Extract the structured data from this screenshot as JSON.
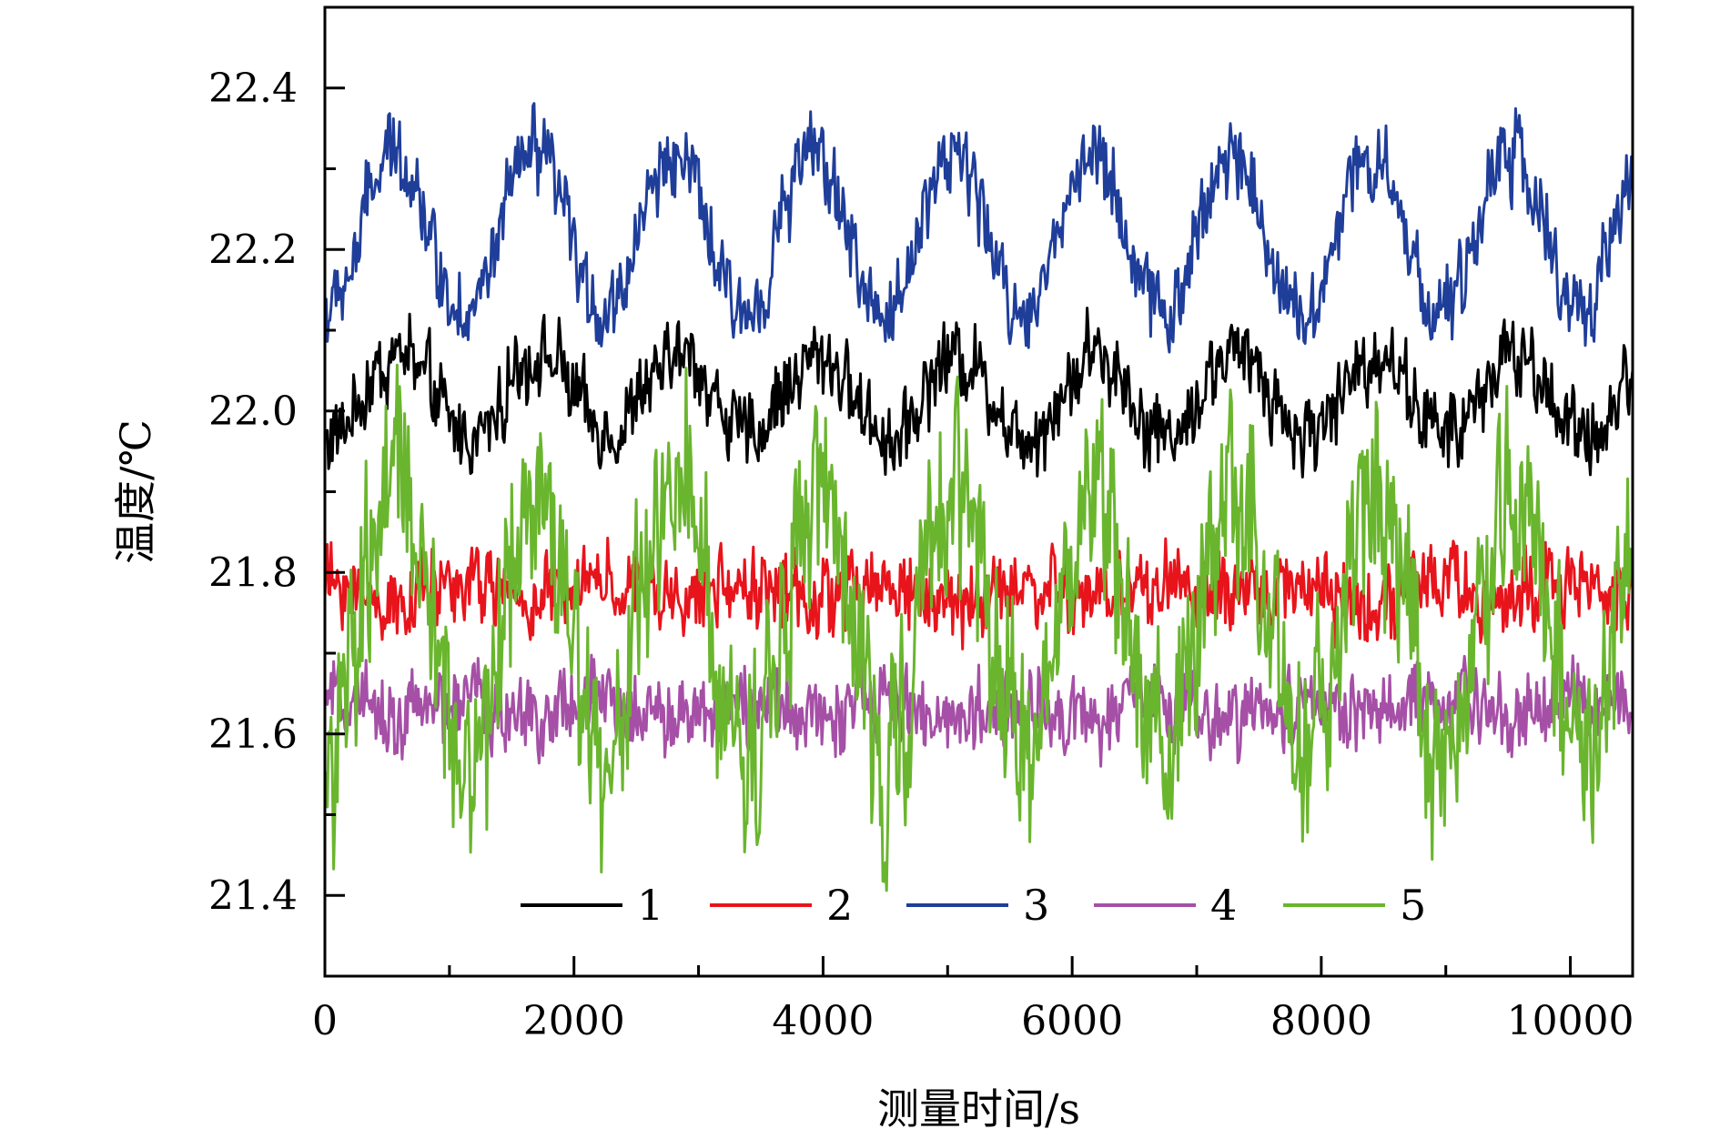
{
  "chart_data": {
    "type": "line",
    "title": "",
    "xlabel": "测量时间/s",
    "ylabel": "温度/℃",
    "xlim": [
      0,
      10500
    ],
    "ylim": [
      21.3,
      22.5
    ],
    "xticks": [
      0,
      2000,
      4000,
      6000,
      8000,
      10000
    ],
    "xtick_labels": [
      "0",
      "2000",
      "4000",
      "6000",
      "8000",
      "10000"
    ],
    "yticks": [
      21.4,
      21.6,
      21.8,
      22.0,
      22.2,
      22.4
    ],
    "ytick_labels": [
      "21.4",
      "21.6",
      "21.8",
      "22.0",
      "22.2",
      "22.4"
    ],
    "grid": false,
    "legend_position": "bottom, horizontal",
    "period_s": 1120,
    "sample_step_s": 10,
    "series": [
      {
        "name": "1",
        "color": "#000000",
        "mean": 22.02,
        "amplitude": 0.05,
        "noise_range": 0.12,
        "phase_peak_s": 600
      },
      {
        "name": "2",
        "color": "#e8141c",
        "mean": 21.775,
        "amplitude": 0.01,
        "noise_range": 0.12,
        "phase_peak_s": 0
      },
      {
        "name": "3",
        "color": "#1f3e9a",
        "mean": 22.22,
        "amplitude": 0.1,
        "noise_range": 0.12,
        "phase_peak_s": 560
      },
      {
        "name": "4",
        "color": "#a550a6",
        "mean": 21.63,
        "amplitude": 0.01,
        "noise_range": 0.12,
        "phase_peak_s": 0
      },
      {
        "name": "5",
        "color": "#6ab52e",
        "mean": 21.74,
        "amplitude": 0.16,
        "noise_range": 0.32,
        "phase_peak_s": 1700
      }
    ]
  }
}
